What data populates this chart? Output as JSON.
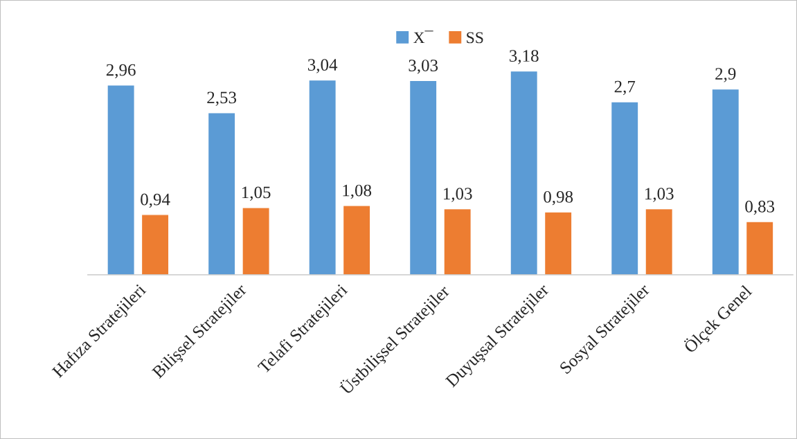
{
  "chart_data": {
    "type": "bar",
    "categories": [
      "Hafıza Stratejileri",
      "Bilişsel Stratejiler",
      "Telafi Stratejileri",
      "Üstbilişsel Stratejiler",
      "Duyuşsal Stratejiler",
      "Sosyal Stratejiler",
      "Ölçek Genel"
    ],
    "series": [
      {
        "name": "X¯",
        "color": "#5b9bd5",
        "values": [
          2.96,
          2.53,
          3.04,
          3.03,
          3.18,
          2.7,
          2.9
        ],
        "value_labels": [
          "2,96",
          "2,53",
          "3,04",
          "3,03",
          "3,18",
          "2,7",
          "2,9"
        ]
      },
      {
        "name": "SS",
        "color": "#ed7d31",
        "values": [
          0.94,
          1.05,
          1.08,
          1.03,
          0.98,
          1.03,
          0.83
        ],
        "value_labels": [
          "0,94",
          "1,05",
          "1,08",
          "1,03",
          "0,98",
          "1,03",
          "0,83"
        ]
      }
    ],
    "legend": "top"
  }
}
